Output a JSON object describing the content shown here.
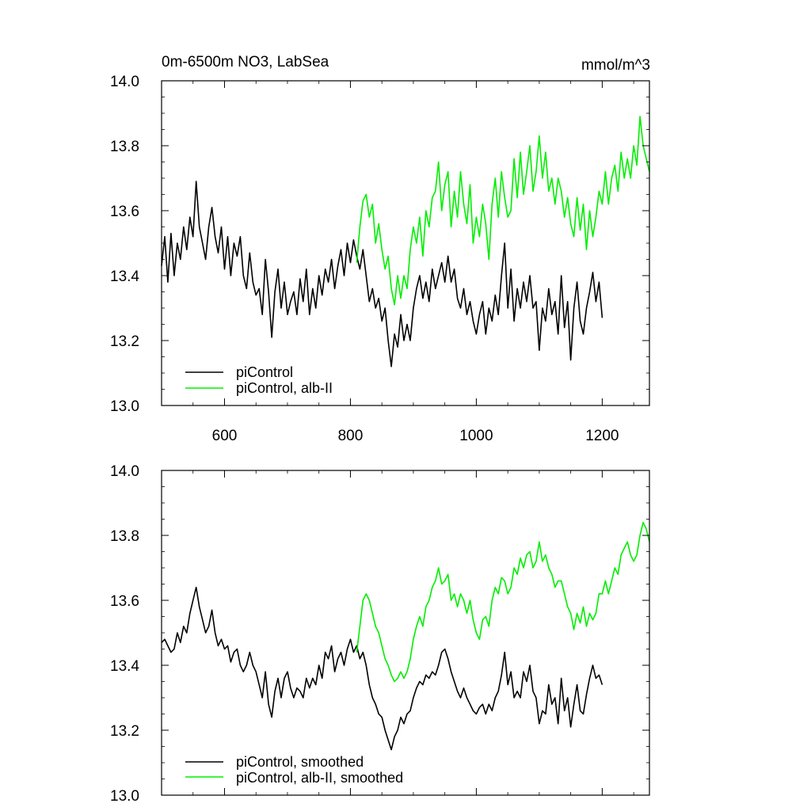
{
  "chart_data": [
    {
      "type": "line",
      "title": "0m-6500m NO3, LabSea",
      "units": "mmol/m^3",
      "xlim": [
        500,
        1275
      ],
      "ylim": [
        13.0,
        14.0
      ],
      "x_ticks": [
        600,
        800,
        1000,
        1200
      ],
      "x_tick_labels": [
        "600",
        "800",
        "1000",
        "1200"
      ],
      "y_ticks": [
        13.0,
        13.2,
        13.4,
        13.6,
        13.8,
        14.0
      ],
      "y_tick_labels": [
        "13.0",
        "13.2",
        "13.4",
        "13.6",
        "13.8",
        "14.0"
      ],
      "grid": false,
      "legend": "bottom-left",
      "series": [
        {
          "name": "piControl",
          "color": "#000000",
          "x": [
            500,
            505,
            510,
            515,
            520,
            525,
            530,
            535,
            540,
            545,
            550,
            555,
            560,
            565,
            570,
            575,
            580,
            585,
            590,
            595,
            600,
            605,
            610,
            615,
            620,
            625,
            630,
            635,
            640,
            645,
            650,
            655,
            660,
            665,
            670,
            675,
            680,
            685,
            690,
            695,
            700,
            705,
            710,
            715,
            720,
            725,
            730,
            735,
            740,
            745,
            750,
            755,
            760,
            765,
            770,
            775,
            780,
            785,
            790,
            795,
            800,
            805,
            810,
            815,
            820,
            825,
            830,
            835,
            840,
            845,
            850,
            855,
            860,
            865,
            870,
            875,
            880,
            885,
            890,
            895,
            900,
            905,
            910,
            915,
            920,
            925,
            930,
            935,
            940,
            945,
            950,
            955,
            960,
            965,
            970,
            975,
            980,
            985,
            990,
            995,
            1000,
            1005,
            1010,
            1015,
            1020,
            1025,
            1030,
            1035,
            1040,
            1045,
            1050,
            1055,
            1060,
            1065,
            1070,
            1075,
            1080,
            1085,
            1090,
            1095,
            1100,
            1105,
            1110,
            1115,
            1120,
            1125,
            1130,
            1135,
            1140,
            1145,
            1150,
            1155,
            1160,
            1165,
            1170,
            1175,
            1180,
            1185,
            1190,
            1195,
            1200
          ],
          "values": [
            13.43,
            13.52,
            13.38,
            13.53,
            13.4,
            13.5,
            13.45,
            13.55,
            13.48,
            13.58,
            13.52,
            13.69,
            13.55,
            13.5,
            13.45,
            13.55,
            13.61,
            13.52,
            13.47,
            13.55,
            13.42,
            13.52,
            13.4,
            13.5,
            13.46,
            13.52,
            13.4,
            13.36,
            13.47,
            13.38,
            13.34,
            13.36,
            13.28,
            13.45,
            13.35,
            13.21,
            13.35,
            13.42,
            13.3,
            13.38,
            13.28,
            13.32,
            13.35,
            13.28,
            13.39,
            13.32,
            13.42,
            13.28,
            13.36,
            13.3,
            13.4,
            13.34,
            13.42,
            13.38,
            13.45,
            13.36,
            13.43,
            13.48,
            13.4,
            13.5,
            13.44,
            13.51,
            13.46,
            13.42,
            13.48,
            13.4,
            13.32,
            13.36,
            13.3,
            13.33,
            13.26,
            13.3,
            13.2,
            13.12,
            13.22,
            13.18,
            13.28,
            13.2,
            13.25,
            13.2,
            13.3,
            13.36,
            13.4,
            13.33,
            13.38,
            13.32,
            13.42,
            13.36,
            13.4,
            13.44,
            13.38,
            13.46,
            13.38,
            13.42,
            13.33,
            13.3,
            13.36,
            13.28,
            13.32,
            13.26,
            13.22,
            13.28,
            13.32,
            13.22,
            13.3,
            13.26,
            13.34,
            13.28,
            13.4,
            13.5,
            13.3,
            13.42,
            13.26,
            13.36,
            13.3,
            13.38,
            13.32,
            13.4,
            13.3,
            13.32,
            13.17,
            13.3,
            13.26,
            13.36,
            13.28,
            13.32,
            13.22,
            13.4,
            13.24,
            13.32,
            13.14,
            13.3,
            13.38,
            13.26,
            13.22,
            13.3,
            13.35,
            13.41,
            13.32,
            13.38,
            13.27
          ]
        },
        {
          "name": "piControl, alb-II",
          "color": "#00ee00",
          "x": [
            810,
            815,
            820,
            825,
            830,
            835,
            840,
            845,
            850,
            855,
            860,
            865,
            870,
            875,
            880,
            885,
            890,
            895,
            900,
            905,
            910,
            915,
            920,
            925,
            930,
            935,
            940,
            945,
            950,
            955,
            960,
            965,
            970,
            975,
            980,
            985,
            990,
            995,
            1000,
            1005,
            1010,
            1015,
            1020,
            1025,
            1030,
            1035,
            1040,
            1045,
            1050,
            1055,
            1060,
            1065,
            1070,
            1075,
            1080,
            1085,
            1090,
            1095,
            1100,
            1105,
            1110,
            1115,
            1120,
            1125,
            1130,
            1135,
            1140,
            1145,
            1150,
            1155,
            1160,
            1165,
            1170,
            1175,
            1180,
            1185,
            1190,
            1195,
            1200,
            1205,
            1210,
            1215,
            1220,
            1225,
            1230,
            1235,
            1240,
            1245,
            1250,
            1255,
            1260,
            1265,
            1270,
            1275
          ],
          "values": [
            13.44,
            13.55,
            13.63,
            13.65,
            13.58,
            13.62,
            13.5,
            13.56,
            13.48,
            13.42,
            13.46,
            13.36,
            13.31,
            13.4,
            13.33,
            13.4,
            13.36,
            13.48,
            13.55,
            13.5,
            13.58,
            13.46,
            13.6,
            13.55,
            13.64,
            13.66,
            13.75,
            13.6,
            13.68,
            13.72,
            13.55,
            13.66,
            13.58,
            13.72,
            13.62,
            13.56,
            13.68,
            13.5,
            13.58,
            13.52,
            13.62,
            13.56,
            13.45,
            13.62,
            13.7,
            13.58,
            13.72,
            13.64,
            13.58,
            13.6,
            13.76,
            13.64,
            13.78,
            13.65,
            13.72,
            13.8,
            13.66,
            13.72,
            13.83,
            13.7,
            13.78,
            13.66,
            13.7,
            13.62,
            13.7,
            13.66,
            13.58,
            13.64,
            13.56,
            13.52,
            13.64,
            13.54,
            13.62,
            13.48,
            13.6,
            13.52,
            13.58,
            13.66,
            13.62,
            13.72,
            13.62,
            13.7,
            13.74,
            13.66,
            13.78,
            13.7,
            13.76,
            13.7,
            13.8,
            13.74,
            13.89,
            13.8,
            13.76,
            13.72
          ]
        }
      ]
    },
    {
      "type": "line",
      "xlim": [
        500,
        1275
      ],
      "ylim": [
        13.0,
        14.0
      ],
      "x_ticks": [
        600,
        800,
        1000,
        1200
      ],
      "y_ticks": [
        13.0,
        13.2,
        13.4,
        13.6,
        13.8,
        14.0
      ],
      "y_tick_labels": [
        "13.0",
        "13.2",
        "13.4",
        "13.6",
        "13.8",
        "14.0"
      ],
      "grid": false,
      "legend": "bottom-left",
      "series": [
        {
          "name": "piControl, smoothed",
          "color": "#000000",
          "x": [
            500,
            505,
            510,
            515,
            520,
            525,
            530,
            535,
            540,
            545,
            550,
            555,
            560,
            565,
            570,
            575,
            580,
            585,
            590,
            595,
            600,
            605,
            610,
            615,
            620,
            625,
            630,
            635,
            640,
            645,
            650,
            655,
            660,
            665,
            670,
            675,
            680,
            685,
            690,
            695,
            700,
            705,
            710,
            715,
            720,
            725,
            730,
            735,
            740,
            745,
            750,
            755,
            760,
            765,
            770,
            775,
            780,
            785,
            790,
            795,
            800,
            805,
            810,
            815,
            820,
            825,
            830,
            835,
            840,
            845,
            850,
            855,
            860,
            865,
            870,
            875,
            880,
            885,
            890,
            895,
            900,
            905,
            910,
            915,
            920,
            925,
            930,
            935,
            940,
            945,
            950,
            955,
            960,
            965,
            970,
            975,
            980,
            985,
            990,
            995,
            1000,
            1005,
            1010,
            1015,
            1020,
            1025,
            1030,
            1035,
            1040,
            1045,
            1050,
            1055,
            1060,
            1065,
            1070,
            1075,
            1080,
            1085,
            1090,
            1095,
            1100,
            1105,
            1110,
            1115,
            1120,
            1125,
            1130,
            1135,
            1140,
            1145,
            1150,
            1155,
            1160,
            1165,
            1170,
            1175,
            1180,
            1185,
            1190,
            1195,
            1200
          ],
          "values": [
            13.47,
            13.48,
            13.46,
            13.44,
            13.45,
            13.5,
            13.47,
            13.52,
            13.5,
            13.56,
            13.6,
            13.64,
            13.58,
            13.54,
            13.5,
            13.52,
            13.57,
            13.5,
            13.46,
            13.48,
            13.45,
            13.46,
            13.41,
            13.44,
            13.45,
            13.4,
            13.38,
            13.4,
            13.44,
            13.4,
            13.38,
            13.34,
            13.3,
            13.38,
            13.28,
            13.24,
            13.32,
            13.36,
            13.3,
            13.36,
            13.38,
            13.33,
            13.3,
            13.33,
            13.32,
            13.3,
            13.36,
            13.33,
            13.36,
            13.34,
            13.4,
            13.36,
            13.44,
            13.42,
            13.46,
            13.38,
            13.42,
            13.44,
            13.4,
            13.45,
            13.48,
            13.44,
            13.46,
            13.42,
            13.44,
            13.4,
            13.34,
            13.3,
            13.28,
            13.25,
            13.24,
            13.2,
            13.17,
            13.14,
            13.18,
            13.2,
            13.24,
            13.22,
            13.25,
            13.26,
            13.3,
            13.33,
            13.35,
            13.34,
            13.37,
            13.36,
            13.38,
            13.37,
            13.4,
            13.44,
            13.45,
            13.42,
            13.38,
            13.35,
            13.32,
            13.3,
            13.33,
            13.3,
            13.28,
            13.26,
            13.25,
            13.27,
            13.28,
            13.25,
            13.28,
            13.26,
            13.3,
            13.32,
            13.37,
            13.44,
            13.34,
            13.38,
            13.3,
            13.32,
            13.3,
            13.38,
            13.35,
            13.4,
            13.32,
            13.3,
            13.22,
            13.26,
            13.25,
            13.34,
            13.28,
            13.3,
            13.22,
            13.36,
            13.26,
            13.3,
            13.21,
            13.28,
            13.34,
            13.26,
            13.25,
            13.31,
            13.36,
            13.4,
            13.36,
            13.37,
            13.34
          ]
        },
        {
          "name": "piControl, alb-II, smoothed",
          "color": "#00ee00",
          "x": [
            810,
            815,
            820,
            825,
            830,
            835,
            840,
            845,
            850,
            855,
            860,
            865,
            870,
            875,
            880,
            885,
            890,
            895,
            900,
            905,
            910,
            915,
            920,
            925,
            930,
            935,
            940,
            945,
            950,
            955,
            960,
            965,
            970,
            975,
            980,
            985,
            990,
            995,
            1000,
            1005,
            1010,
            1015,
            1020,
            1025,
            1030,
            1035,
            1040,
            1045,
            1050,
            1055,
            1060,
            1065,
            1070,
            1075,
            1080,
            1085,
            1090,
            1095,
            1100,
            1105,
            1110,
            1115,
            1120,
            1125,
            1130,
            1135,
            1140,
            1145,
            1150,
            1155,
            1160,
            1165,
            1170,
            1175,
            1180,
            1185,
            1190,
            1195,
            1200,
            1205,
            1210,
            1215,
            1220,
            1225,
            1230,
            1235,
            1240,
            1245,
            1250,
            1255,
            1260,
            1265,
            1270,
            1275
          ],
          "values": [
            13.44,
            13.52,
            13.6,
            13.62,
            13.6,
            13.56,
            13.52,
            13.5,
            13.46,
            13.42,
            13.4,
            13.37,
            13.35,
            13.36,
            13.38,
            13.36,
            13.38,
            13.42,
            13.48,
            13.52,
            13.55,
            13.52,
            13.58,
            13.6,
            13.64,
            13.66,
            13.7,
            13.65,
            13.66,
            13.68,
            13.6,
            13.62,
            13.58,
            13.62,
            13.6,
            13.56,
            13.6,
            13.54,
            13.5,
            13.48,
            13.54,
            13.55,
            13.52,
            13.6,
            13.64,
            13.62,
            13.67,
            13.66,
            13.62,
            13.64,
            13.7,
            13.68,
            13.73,
            13.7,
            13.74,
            13.75,
            13.7,
            13.72,
            13.78,
            13.72,
            13.74,
            13.7,
            13.68,
            13.64,
            13.66,
            13.66,
            13.62,
            13.58,
            13.56,
            13.51,
            13.56,
            13.53,
            13.58,
            13.52,
            13.56,
            13.54,
            13.56,
            13.62,
            13.62,
            13.66,
            13.62,
            13.66,
            13.7,
            13.68,
            13.74,
            13.76,
            13.78,
            13.74,
            13.72,
            13.74,
            13.8,
            13.84,
            13.82,
            13.78
          ]
        }
      ]
    }
  ]
}
